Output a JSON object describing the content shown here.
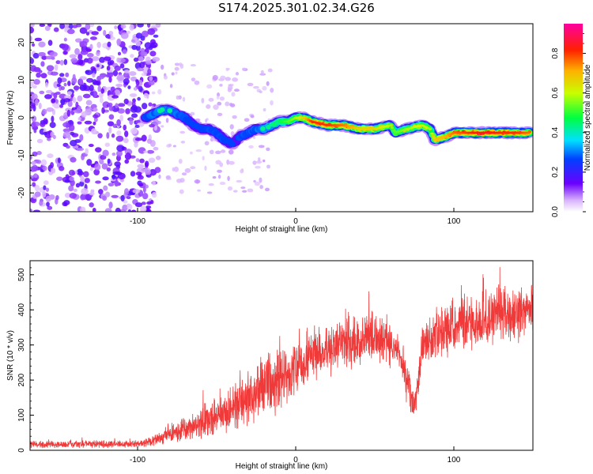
{
  "title": "S174.2025.301.02.34.G26",
  "chart_data": [
    {
      "type": "heatmap",
      "xlabel": "Height of straight line (km)",
      "ylabel": "Frequency (Hz)",
      "xlim": [
        -168,
        150
      ],
      "ylim": [
        -25,
        25
      ],
      "xticks": [
        -100,
        0,
        100
      ],
      "yticks": [
        -20,
        -10,
        0,
        10,
        20
      ],
      "colorbar": {
        "label": "Normalized spectral amplitude",
        "range": [
          0,
          1
        ],
        "ticks": [
          "0.0",
          "0.2",
          "0.4",
          "0.6",
          "0.8"
        ],
        "tick_values": [
          0,
          0.2,
          0.4,
          0.6,
          0.8
        ]
      },
      "ridge": {
        "x": [
          -95,
          -90,
          -85,
          -80,
          -75,
          -70,
          -65,
          -60,
          -55,
          -50,
          -45,
          -40,
          -35,
          -30,
          -25,
          -20,
          -15,
          -10,
          -5,
          0,
          5,
          10,
          20,
          30,
          40,
          50,
          60,
          63,
          70,
          80,
          85,
          88,
          95,
          100,
          110,
          120,
          130,
          140,
          148
        ],
        "y": [
          0,
          1,
          2,
          2,
          1,
          0,
          -2,
          -3,
          -3,
          -4,
          -6,
          -7,
          -5,
          -4,
          -3,
          -3,
          -2,
          -1,
          -1,
          0,
          0,
          -1,
          -2,
          -2,
          -3,
          -3,
          -2,
          -4,
          -3,
          -2,
          -3,
          -6,
          -5,
          -4,
          -4,
          -4,
          -4,
          -4,
          -4
        ],
        "amplitude": [
          0.3,
          0.35,
          0.4,
          0.4,
          0.35,
          0.3,
          0.25,
          0.25,
          0.3,
          0.3,
          0.3,
          0.25,
          0.3,
          0.3,
          0.35,
          0.4,
          0.45,
          0.5,
          0.55,
          0.6,
          0.7,
          0.85,
          0.85,
          0.8,
          0.7,
          0.7,
          0.6,
          0.55,
          0.6,
          0.65,
          0.6,
          0.7,
          0.75,
          0.8,
          0.85,
          0.9,
          0.85,
          0.85,
          0.8
        ]
      },
      "noise_region": {
        "x_from": -168,
        "x_to": -95,
        "amplitude_max": 0.15
      }
    },
    {
      "type": "line",
      "xlabel": "Height of straight line (km)",
      "ylabel": "SNR (10 * v/v)",
      "xlim": [
        -168,
        150
      ],
      "ylim": [
        0,
        540
      ],
      "xticks": [
        -100,
        0,
        100
      ],
      "yticks": [
        0,
        100,
        200,
        300,
        400,
        500
      ],
      "color": "#f03a3a",
      "envelope": {
        "x": [
          -168,
          -100,
          -95,
          -90,
          -80,
          -70,
          -60,
          -50,
          -40,
          -30,
          -20,
          -10,
          0,
          10,
          20,
          30,
          40,
          50,
          60,
          65,
          70,
          75,
          80,
          90,
          100,
          110,
          120,
          130,
          140,
          150
        ],
        "mean": [
          17,
          18,
          20,
          25,
          45,
          60,
          80,
          95,
          120,
          150,
          180,
          200,
          230,
          270,
          290,
          300,
          310,
          320,
          300,
          290,
          200,
          120,
          290,
          340,
          350,
          360,
          370,
          390,
          390,
          400
        ],
        "spread": [
          10,
          10,
          12,
          15,
          25,
          35,
          45,
          55,
          65,
          75,
          80,
          85,
          80,
          75,
          70,
          70,
          70,
          70,
          60,
          40,
          60,
          40,
          60,
          70,
          75,
          75,
          75,
          75,
          75,
          75
        ]
      }
    }
  ]
}
